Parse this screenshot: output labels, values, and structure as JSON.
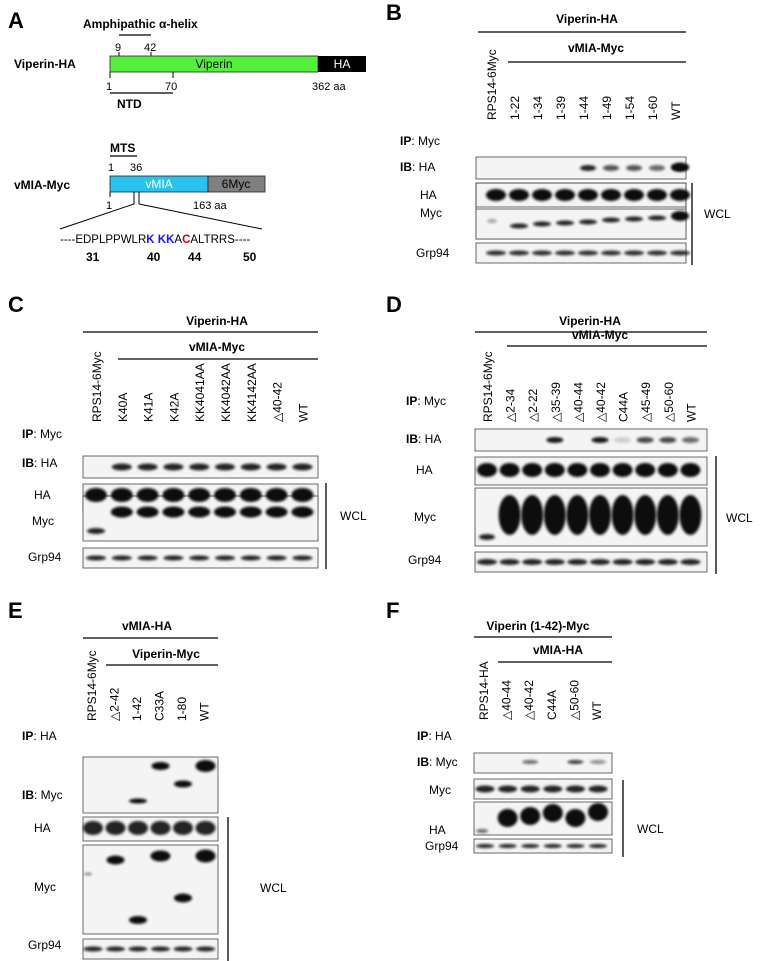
{
  "panel_labels": [
    "A",
    "B",
    "C",
    "D",
    "E",
    "F"
  ],
  "panelA": {
    "amphi_label": "Amphipathic α-helix",
    "amphi_range": [
      "9",
      "42"
    ],
    "viperin_construct": "Viperin-HA",
    "viperin_domain": "Viperin",
    "viperin_tag": "HA",
    "viperin_ticks": [
      "1",
      "70",
      "362 aa"
    ],
    "ntd_label": "NTD",
    "mts_label": "MTS",
    "mts_range": [
      "1",
      "36"
    ],
    "vmia_construct": "vMIA-Myc",
    "vmia_domain": "vMIA",
    "vmia_tag": "6Myc",
    "vmia_ticks": [
      "1",
      "163 aa"
    ],
    "seq_segments": [
      {
        "text": "----EDPLPPWLR",
        "color": "#000000"
      },
      {
        "text": "K",
        "color": "#1a1aff"
      },
      {
        "text": " ",
        "color": "#000000"
      },
      {
        "text": "KK",
        "color": "#1a1aff"
      },
      {
        "text": "A",
        "color": "#000000"
      },
      {
        "text": "C",
        "color": "#e00000"
      },
      {
        "text": "ALTRRS----",
        "color": "#000000"
      }
    ],
    "seq_numbers": [
      "31",
      "40",
      "44",
      "50"
    ],
    "colors": {
      "viperin_green": "#55f03c",
      "vmia_cyan": "#28c4ee",
      "tag_black": "#000000",
      "tag_gray": "#808080"
    }
  },
  "panelB": {
    "header": "Viperin-HA",
    "subheader": "vMIA-Myc",
    "lanes": [
      "RPS14-6Myc",
      "1-22",
      "1-34",
      "1-39",
      "1-44",
      "1-49",
      "1-54",
      "1-60",
      "WT"
    ],
    "ip_prefix": "IP",
    "ip_target": "Myc",
    "ib_prefix": "IB",
    "ib_target": "HA",
    "wcl_rows": [
      "HA",
      "Myc",
      "Grp94"
    ],
    "wcl_label": "WCL"
  },
  "panelC": {
    "header": "Viperin-HA",
    "subheader": "vMIA-Myc",
    "lanes": [
      "RPS14-6Myc",
      "K40A",
      "K41A",
      "K42A",
      "KK4041AA",
      "KK4042AA",
      "KK4142AA",
      "△40-42",
      "WT"
    ],
    "ip_prefix": "IP",
    "ip_target": "Myc",
    "ib_prefix": "IB",
    "ib_target": "HA",
    "wcl_rows": [
      "HA",
      "Myc",
      "Grp94"
    ],
    "wcl_label": "WCL"
  },
  "panelD": {
    "header": "Viperin-HA",
    "subheader": "vMIA-Myc",
    "lanes": [
      "RPS14-6Myc",
      "△2-34",
      "△2-22",
      "△35-39",
      "△40-44",
      "△40-42",
      "C44A",
      "△45-49",
      "△50-60",
      "WT"
    ],
    "ip_prefix": "IP",
    "ip_target": "Myc",
    "ib_prefix": "IB",
    "ib_target": "HA",
    "wcl_rows": [
      "HA",
      "Myc",
      "Grp94"
    ],
    "wcl_label": "WCL"
  },
  "panelE": {
    "header": "vMIA-HA",
    "subheader": "Viperin-Myc",
    "lanes": [
      "RPS14-6Myc",
      "△2-42",
      "1-42",
      "C33A",
      "1-80",
      "WT"
    ],
    "ip_prefix": "IP",
    "ip_target": "HA",
    "ib_prefix": "IB",
    "ib_target": "Myc",
    "wcl_rows": [
      "HA",
      "Myc",
      "Grp94"
    ],
    "wcl_label": "WCL"
  },
  "panelF": {
    "header": "Viperin (1-42)-Myc",
    "subheader": "vMIA-HA",
    "lanes": [
      "RPS14-HA",
      "△40-44",
      "△40-42",
      "C44A",
      "△50-60",
      "WT"
    ],
    "ip_prefix": "IP",
    "ip_target": "HA",
    "ib_prefix": "IB",
    "ib_target": "Myc",
    "wcl_rows": [
      "Myc",
      "HA",
      "Grp94"
    ],
    "wcl_label": "WCL"
  }
}
